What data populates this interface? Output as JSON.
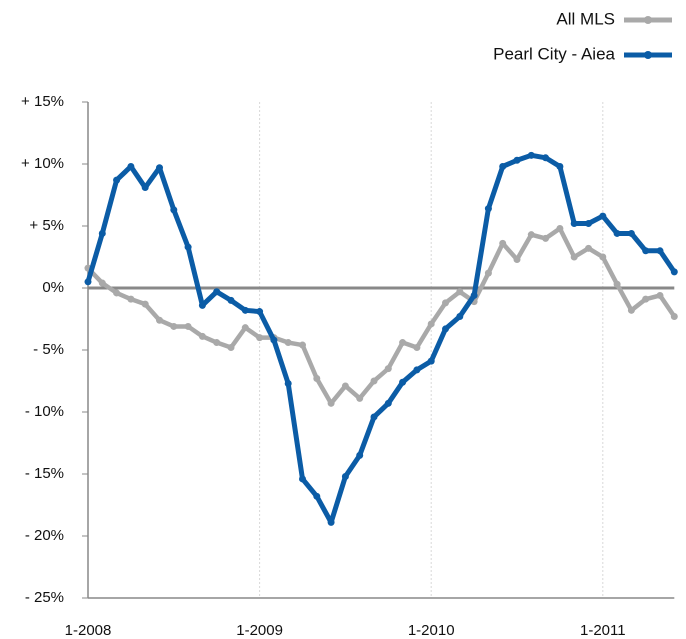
{
  "chart_data": {
    "type": "line",
    "categories": [
      "1-2008",
      null,
      null,
      null,
      null,
      null,
      null,
      null,
      null,
      null,
      null,
      null,
      "1-2009",
      null,
      null,
      null,
      null,
      null,
      null,
      null,
      null,
      null,
      null,
      null,
      "1-2010",
      null,
      null,
      null,
      null,
      null,
      null,
      null,
      null,
      null,
      null,
      null,
      "1-2011",
      null,
      null,
      null,
      null,
      null
    ],
    "series": [
      {
        "name": "All MLS",
        "color": "#a9a9a9",
        "values": [
          1.6,
          0.4,
          -0.4,
          -0.9,
          -1.3,
          -2.6,
          -3.1,
          -3.1,
          -3.9,
          -4.4,
          -4.8,
          -3.2,
          -4.0,
          -4.0,
          -4.4,
          -4.6,
          -7.3,
          -9.3,
          -7.9,
          -8.9,
          -7.5,
          -6.5,
          -4.4,
          -4.8,
          -2.9,
          -1.2,
          -0.3,
          -1.1,
          1.2,
          3.6,
          2.3,
          4.3,
          4.0,
          4.8,
          2.5,
          3.2,
          2.5,
          0.3,
          -1.8,
          -0.9,
          -0.6,
          -2.3
        ]
      },
      {
        "name": "Pearl City - Aiea",
        "color": "#0b5ca6",
        "values": [
          0.5,
          4.4,
          8.7,
          9.8,
          8.1,
          9.7,
          6.3,
          3.3,
          -1.4,
          -0.3,
          -1.0,
          -1.8,
          -1.9,
          -4.2,
          -7.7,
          -15.4,
          -16.8,
          -18.9,
          -15.2,
          -13.5,
          -10.4,
          -9.3,
          -7.6,
          -6.6,
          -5.9,
          -3.3,
          -2.3,
          -0.6,
          6.4,
          9.8,
          10.3,
          10.7,
          10.5,
          9.8,
          5.2,
          5.2,
          5.8,
          4.4,
          4.4,
          3.0,
          3.0,
          1.3
        ]
      }
    ],
    "ylim": [
      -25,
      15
    ],
    "yticks": [
      {
        "value": 15,
        "label": "+ 15%"
      },
      {
        "value": 10,
        "label": "+ 10%"
      },
      {
        "value": 5,
        "label": "+ 5%"
      },
      {
        "value": 0,
        "label": "0%"
      },
      {
        "value": -5,
        "label": "- 5%"
      },
      {
        "value": -10,
        "label": "- 10%"
      },
      {
        "value": -15,
        "label": "- 15%"
      },
      {
        "value": -20,
        "label": "- 20%"
      },
      {
        "value": -25,
        "label": "- 25%"
      }
    ],
    "legend": "top-right",
    "grid": true
  }
}
